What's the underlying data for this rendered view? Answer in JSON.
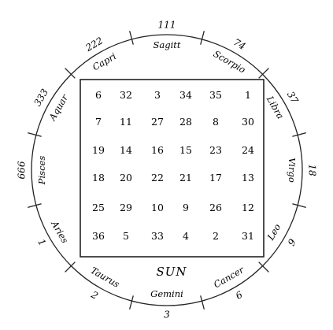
{
  "square": {
    "rows": [
      [
        "6",
        "32",
        "3",
        "34",
        "35",
        "1"
      ],
      [
        "7",
        "11",
        "27",
        "28",
        "8",
        "30"
      ],
      [
        "19",
        "14",
        "16",
        "15",
        "23",
        "24"
      ],
      [
        "18",
        "20",
        "22",
        "21",
        "17",
        "13"
      ],
      [
        "25",
        "29",
        "10",
        "9",
        "26",
        "12"
      ],
      [
        "36",
        "5",
        "33",
        "4",
        "2",
        "31"
      ]
    ],
    "caption": "SUN"
  },
  "zodiac": [
    {
      "sign": "Capri",
      "number": "222"
    },
    {
      "sign": "Sagitt",
      "number": "111"
    },
    {
      "sign": "Scorpio",
      "number": "74"
    },
    {
      "sign": "Libra",
      "number": "37"
    },
    {
      "sign": "Virgo",
      "number": "18"
    },
    {
      "sign": "Leo",
      "number": "9"
    },
    {
      "sign": "Cancer",
      "number": "6"
    },
    {
      "sign": "Gemini",
      "number": "3"
    },
    {
      "sign": "Taurus",
      "number": "2"
    },
    {
      "sign": "Aries",
      "number": "1"
    },
    {
      "sign": "Pisces",
      "number": "666"
    },
    {
      "sign": "Aquar",
      "number": "333"
    }
  ]
}
